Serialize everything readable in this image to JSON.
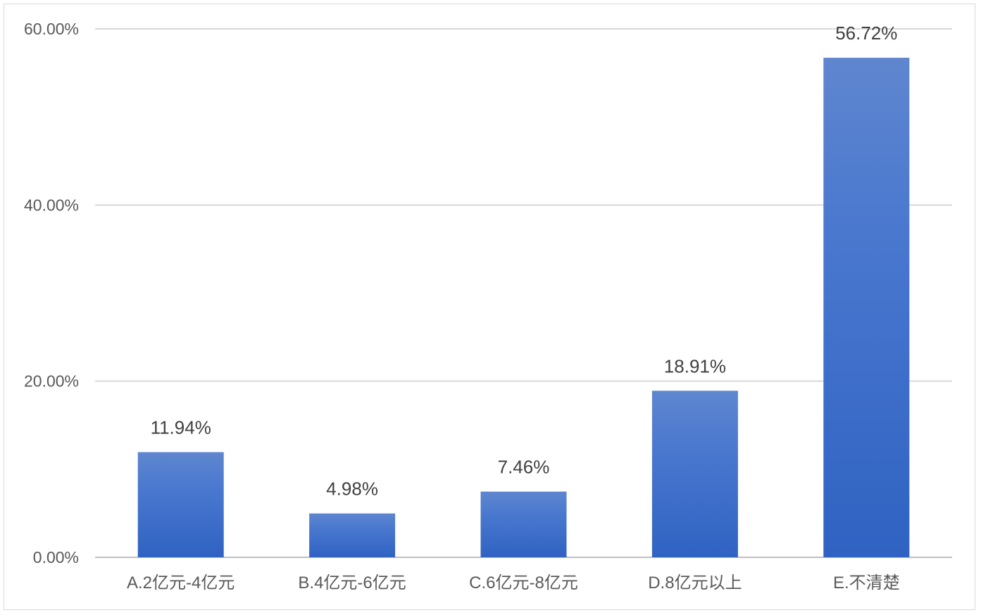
{
  "chart_data": {
    "type": "bar",
    "categories": [
      "A.2亿元-4亿元",
      "B.4亿元-6亿元",
      "C.6亿元-8亿元",
      "D.8亿元以上",
      "E.不清楚"
    ],
    "values": [
      11.94,
      4.98,
      7.46,
      18.91,
      56.72
    ],
    "value_labels": [
      "11.94%",
      "4.98%",
      "7.46%",
      "18.91%",
      "56.72%"
    ],
    "y_ticks": [
      0,
      20,
      40,
      60
    ],
    "y_tick_labels": [
      "0.00%",
      "20.00%",
      "40.00%",
      "60.00%"
    ],
    "ylim": [
      0,
      60
    ],
    "grid": true,
    "legend": "none",
    "colors": {
      "bar_top": "#5f86cf",
      "bar_bottom": "#2f62c2",
      "gridline": "#d9d9d9",
      "axis": "#bfbfbf"
    }
  }
}
